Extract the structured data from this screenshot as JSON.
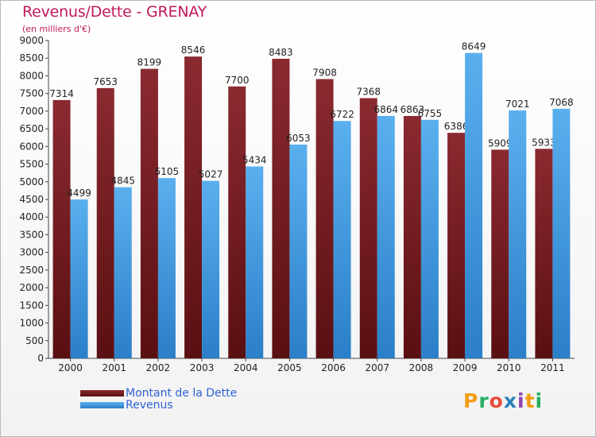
{
  "header": {
    "title": "Revenus/Dette - GRENAY",
    "subtitle": "(en milliers d'€)"
  },
  "brand": {
    "logo_text": "Proxiti",
    "logo_letter_colors": [
      "#f39c12",
      "#27ae60",
      "#e74c3c",
      "#2980b9",
      "#8e44ad",
      "#f39c12",
      "#27ae60"
    ]
  },
  "chart_data": {
    "type": "bar",
    "title": "Revenus/Dette - GRENAY",
    "subtitle": "(en milliers d'€)",
    "categories": [
      "2000",
      "2001",
      "2002",
      "2003",
      "2004",
      "2005",
      "2006",
      "2007",
      "2008",
      "2009",
      "2010",
      "2011"
    ],
    "series": [
      {
        "name": "Montant de la Dette",
        "color": "#7a1e24",
        "values": [
          7314,
          7653,
          8199,
          8546,
          7700,
          8483,
          7908,
          7368,
          6863,
          6386,
          5909,
          5933
        ]
      },
      {
        "name": "Revenus",
        "color": "#3d9be0",
        "values": [
          4499,
          4845,
          5105,
          5027,
          5434,
          6053,
          6722,
          6864,
          6755,
          8649,
          7021,
          7068
        ]
      }
    ],
    "ylim": [
      0,
      9000
    ],
    "yticks": [
      0,
      500,
      1000,
      1500,
      2000,
      2500,
      3000,
      3500,
      4000,
      4500,
      5000,
      5500,
      6000,
      6500,
      7000,
      7500,
      8000,
      8500,
      9000
    ],
    "grid": false,
    "legend_position": "bottom-left"
  }
}
